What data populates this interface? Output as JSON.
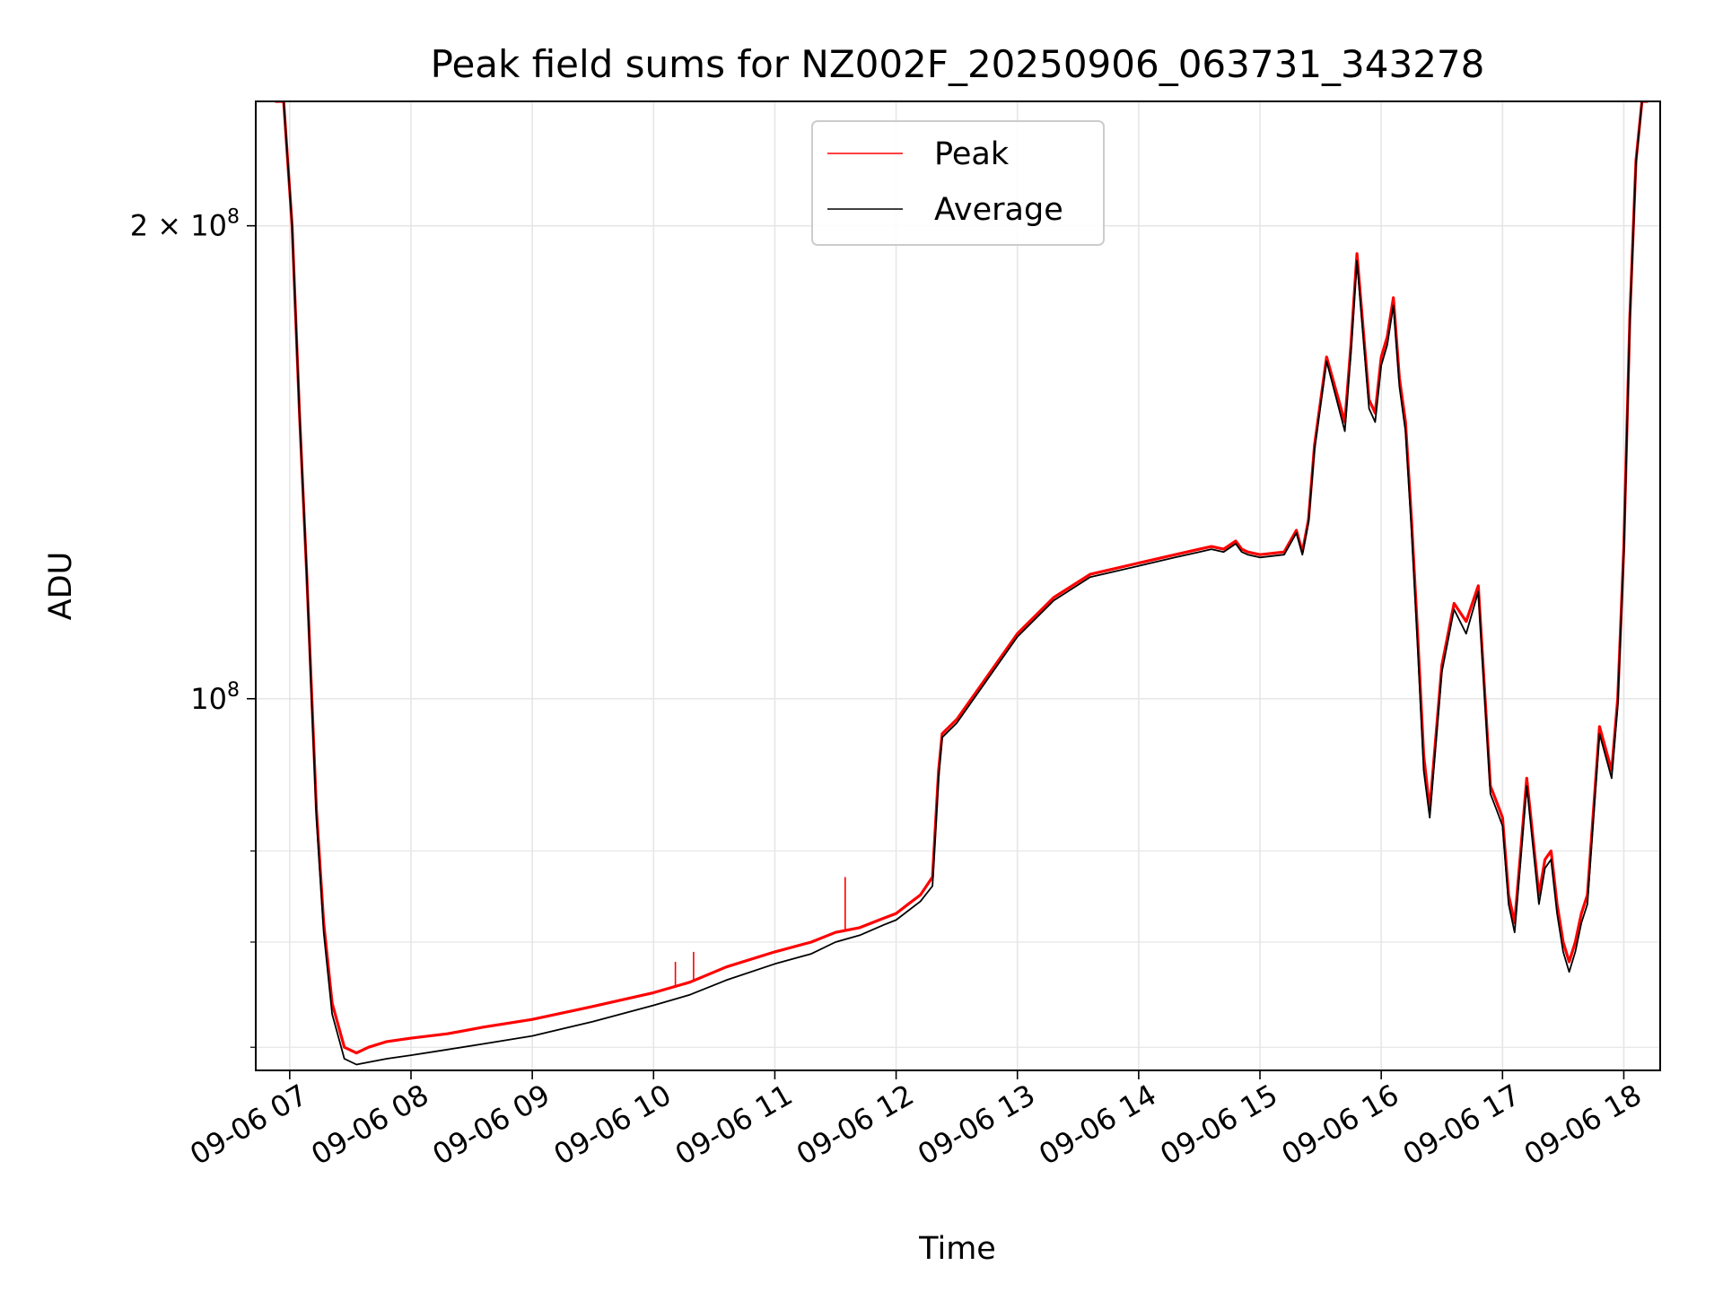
{
  "chart_data": {
    "type": "line",
    "title": "Peak field sums for NZ002F_20250906_063731_343278",
    "xlabel": "Time",
    "ylabel": "ADU",
    "yscale": "log",
    "xlim": [
      6.72,
      18.3
    ],
    "ylim": [
      58000000,
      240000000
    ],
    "grid": true,
    "legend_position": "top-center",
    "x_ticks": [
      {
        "value": 7,
        "label": "09-06 07"
      },
      {
        "value": 8,
        "label": "09-06 08"
      },
      {
        "value": 9,
        "label": "09-06 09"
      },
      {
        "value": 10,
        "label": "09-06 10"
      },
      {
        "value": 11,
        "label": "09-06 11"
      },
      {
        "value": 12,
        "label": "09-06 12"
      },
      {
        "value": 13,
        "label": "09-06 13"
      },
      {
        "value": 14,
        "label": "09-06 14"
      },
      {
        "value": 15,
        "label": "09-06 15"
      },
      {
        "value": 16,
        "label": "09-06 16"
      },
      {
        "value": 17,
        "label": "09-06 17"
      },
      {
        "value": 18,
        "label": "09-06 18"
      }
    ],
    "y_major_ticks": [
      {
        "value": 100000000,
        "base": "10",
        "exp": "8",
        "prefix": ""
      },
      {
        "value": 200000000,
        "base": "10",
        "exp": "8",
        "prefix": "2 × "
      }
    ],
    "y_minor_ticks": [
      60000000,
      70000000,
      80000000
    ],
    "x": [
      6.88,
      6.95,
      7.02,
      7.08,
      7.14,
      7.18,
      7.22,
      7.28,
      7.35,
      7.45,
      7.55,
      7.65,
      7.8,
      8.0,
      8.3,
      8.6,
      9.0,
      9.5,
      10.0,
      10.3,
      10.6,
      11.0,
      11.3,
      11.5,
      11.7,
      11.9,
      12.0,
      12.1,
      12.2,
      12.3,
      12.35,
      12.38,
      12.5,
      12.7,
      13.0,
      13.3,
      13.6,
      14.0,
      14.3,
      14.5,
      14.6,
      14.7,
      14.8,
      14.85,
      14.9,
      15.0,
      15.2,
      15.3,
      15.35,
      15.4,
      15.45,
      15.55,
      15.7,
      15.75,
      15.8,
      15.9,
      15.95,
      16.0,
      16.05,
      16.1,
      16.15,
      16.2,
      16.25,
      16.3,
      16.35,
      16.4,
      16.5,
      16.6,
      16.7,
      16.8,
      16.9,
      16.95,
      17.0,
      17.05,
      17.1,
      17.15,
      17.2,
      17.3,
      17.35,
      17.4,
      17.45,
      17.5,
      17.55,
      17.6,
      17.65,
      17.7,
      17.8,
      17.9,
      17.95,
      18.0,
      18.05,
      18.1,
      18.15,
      18.2
    ],
    "series": [
      {
        "name": "Peak",
        "color": "#ff0000",
        "values": [
          240000000,
          240000000,
          200000000,
          152000000,
          120000000,
          101000000,
          85000000,
          72000000,
          64000000,
          60000000,
          59500000,
          60000000,
          60500000,
          60800000,
          61200000,
          61800000,
          62500000,
          63700000,
          65000000,
          66000000,
          67500000,
          69000000,
          70000000,
          71000000,
          71500000,
          72500000,
          73000000,
          74000000,
          75000000,
          77000000,
          90000000,
          95000000,
          97000000,
          102000000,
          110000000,
          116000000,
          120000000,
          122000000,
          123500000,
          124500000,
          125000000,
          124500000,
          126000000,
          124500000,
          124000000,
          123500000,
          124000000,
          128000000,
          124000000,
          130000000,
          145000000,
          165000000,
          150000000,
          168000000,
          192000000,
          155000000,
          152000000,
          165000000,
          170000000,
          180000000,
          160000000,
          150000000,
          130000000,
          110000000,
          92000000,
          85000000,
          105000000,
          115000000,
          112000000,
          118000000,
          88000000,
          86000000,
          84000000,
          75000000,
          72000000,
          80000000,
          89000000,
          75000000,
          79000000,
          80000000,
          74000000,
          70000000,
          68000000,
          70000000,
          73000000,
          75000000,
          96000000,
          90000000,
          100000000,
          125000000,
          175000000,
          220000000,
          240000000,
          240000000
        ]
      },
      {
        "name": "Average",
        "color": "#000000",
        "values": [
          240000000,
          240000000,
          200000000,
          152000000,
          120000000,
          100000000,
          84000000,
          71000000,
          63000000,
          59000000,
          58500000,
          58700000,
          59000000,
          59300000,
          59800000,
          60300000,
          61000000,
          62300000,
          63800000,
          64800000,
          66200000,
          67800000,
          68800000,
          70000000,
          70700000,
          71800000,
          72300000,
          73300000,
          74300000,
          76000000,
          89000000,
          94500000,
          96500000,
          101500000,
          109500000,
          115500000,
          119500000,
          121500000,
          123000000,
          124000000,
          124500000,
          124000000,
          125500000,
          124000000,
          123500000,
          123000000,
          123500000,
          127500000,
          123500000,
          129500000,
          144000000,
          164000000,
          148000000,
          166000000,
          190000000,
          153000000,
          150000000,
          163000000,
          168000000,
          178000000,
          158000000,
          148000000,
          128000000,
          108000000,
          90000000,
          84000000,
          104000000,
          114000000,
          110000000,
          117000000,
          87000000,
          85000000,
          83000000,
          74000000,
          71000000,
          79000000,
          88000000,
          74000000,
          78000000,
          79000000,
          73000000,
          69000000,
          67000000,
          69000000,
          72000000,
          74000000,
          95000000,
          89000000,
          99000000,
          124000000,
          174000000,
          219000000,
          240000000,
          240000000
        ]
      }
    ],
    "spikes": [
      {
        "series": "Peak",
        "x": 10.18,
        "y": 68000000
      },
      {
        "series": "Peak",
        "x": 10.33,
        "y": 69000000
      },
      {
        "series": "Peak",
        "x": 11.58,
        "y": 77000000
      }
    ]
  }
}
